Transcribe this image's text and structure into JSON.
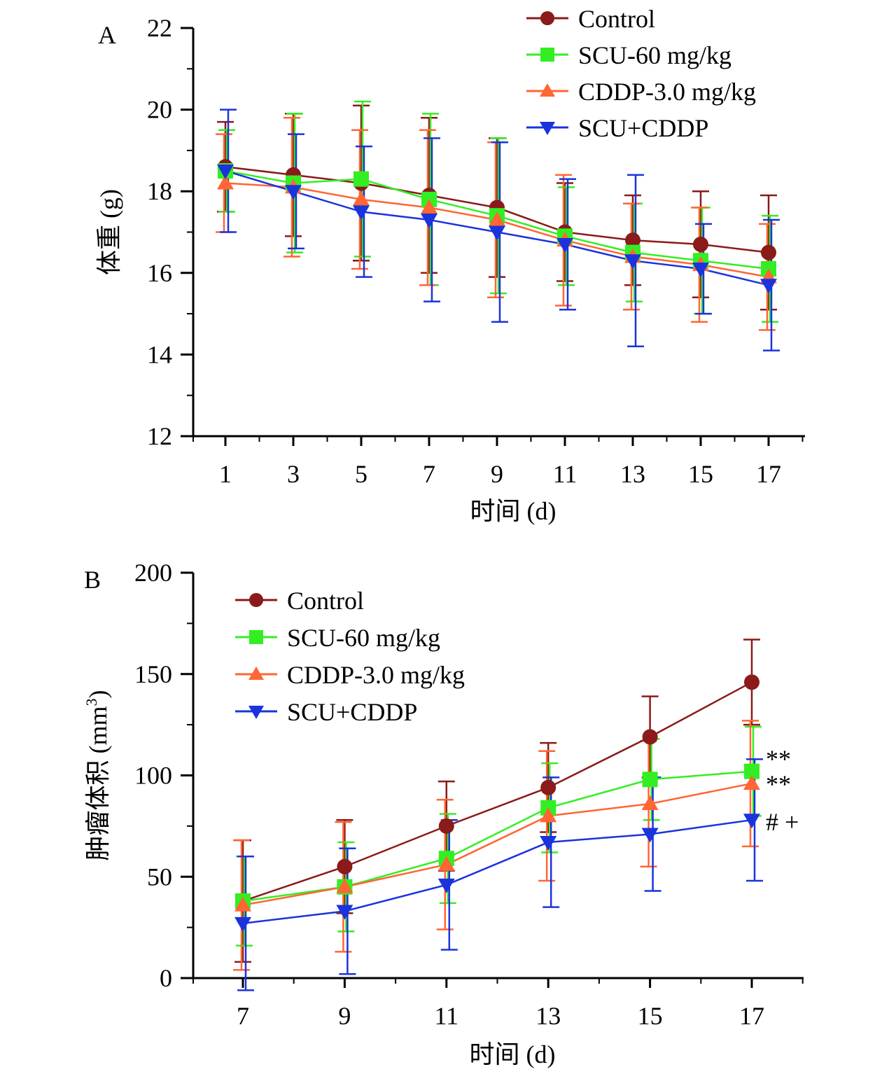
{
  "chart_data": [
    {
      "panel": "A",
      "type": "line",
      "xlabel": "时间 (d)",
      "ylabel": "体重 (g)",
      "ylim": [
        12,
        22
      ],
      "yticks": [
        12,
        14,
        16,
        18,
        20,
        22
      ],
      "x": [
        1,
        3,
        5,
        7,
        9,
        11,
        13,
        15,
        17
      ],
      "legend": "top-right",
      "series": [
        {
          "name": "Control",
          "color": "#8b1a1a",
          "marker": "circle",
          "values": [
            18.6,
            18.4,
            18.2,
            17.9,
            17.6,
            17.0,
            16.8,
            16.7,
            16.5
          ],
          "err": [
            1.1,
            1.5,
            1.9,
            1.9,
            1.7,
            1.2,
            1.1,
            1.3,
            1.4
          ]
        },
        {
          "name": "SCU-60 mg/kg",
          "color": "#33ee22",
          "marker": "square",
          "values": [
            18.5,
            18.2,
            18.3,
            17.8,
            17.4,
            16.9,
            16.5,
            16.3,
            16.1
          ],
          "err": [
            1.0,
            1.7,
            1.9,
            2.1,
            1.9,
            1.2,
            1.2,
            1.3,
            1.3
          ]
        },
        {
          "name": "CDDP-3.0 mg/kg",
          "color": "#ff6633",
          "marker": "triangle-up",
          "values": [
            18.2,
            18.1,
            17.8,
            17.6,
            17.3,
            16.8,
            16.4,
            16.2,
            15.9
          ],
          "err": [
            1.2,
            1.7,
            1.7,
            1.9,
            1.9,
            1.6,
            1.3,
            1.4,
            1.3
          ]
        },
        {
          "name": "SCU+CDDP",
          "color": "#1a33dd",
          "marker": "triangle-down",
          "values": [
            18.5,
            18.0,
            17.5,
            17.3,
            17.0,
            16.7,
            16.3,
            16.1,
            15.7
          ],
          "err": [
            1.5,
            1.4,
            1.6,
            2.0,
            2.2,
            1.6,
            2.1,
            1.1,
            1.6
          ]
        }
      ]
    },
    {
      "panel": "B",
      "type": "line",
      "xlabel": "时间 (d)",
      "ylabel": "肿瘤体积 (mm",
      "ylabel_sup": "3",
      "ylabel_end": ")",
      "ylim": [
        0,
        200
      ],
      "yticks": [
        0,
        50,
        100,
        150,
        200
      ],
      "x": [
        7,
        9,
        11,
        13,
        15,
        17
      ],
      "legend": "top-left",
      "series": [
        {
          "name": "Control",
          "color": "#8b1a1a",
          "marker": "circle",
          "values": [
            38,
            55,
            75,
            94,
            119,
            146
          ],
          "err": [
            30,
            23,
            22,
            22,
            20,
            21
          ]
        },
        {
          "name": "SCU-60 mg/kg",
          "color": "#33ee22",
          "marker": "square",
          "values": [
            38,
            45,
            59,
            84,
            98,
            102
          ],
          "err": [
            22,
            22,
            22,
            22,
            20,
            22
          ]
        },
        {
          "name": "CDDP-3.0 mg/kg",
          "color": "#ff6633",
          "marker": "triangle-up",
          "values": [
            36,
            45,
            56,
            80,
            86,
            96
          ],
          "err": [
            32,
            32,
            32,
            32,
            31,
            31
          ]
        },
        {
          "name": "SCU+CDDP",
          "color": "#1a33dd",
          "marker": "triangle-down",
          "values": [
            27,
            33,
            46,
            67,
            71,
            78
          ],
          "err": [
            33,
            31,
            32,
            32,
            28,
            30
          ]
        }
      ],
      "annotations": [
        "**",
        "**",
        "# +"
      ]
    }
  ]
}
